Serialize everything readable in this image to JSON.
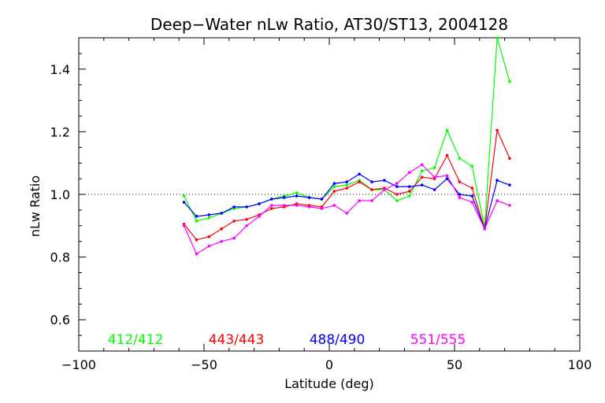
{
  "chart_data": {
    "type": "line",
    "title": "Deep−Water nLw Ratio, AT30/ST13, 2004128",
    "xlabel": "Latitude (deg)",
    "ylabel": "nLw Ratio",
    "xlim": [
      -100,
      100
    ],
    "ylim": [
      0.5,
      1.5
    ],
    "xticks": [
      -100,
      -50,
      0,
      50,
      100
    ],
    "xtick_labels": [
      "−100",
      "−50",
      "0",
      "50",
      "100"
    ],
    "yticks": [
      0.6,
      0.8,
      1.0,
      1.2,
      1.4
    ],
    "ytick_labels": [
      "0.6",
      "0.8",
      "1.0",
      "1.2",
      "1.4"
    ],
    "grid": false,
    "reference_line": {
      "y": 1.0,
      "style": "dotted"
    },
    "legend_placement": "bottom, inside plot",
    "x": [
      -58,
      -53,
      -48,
      -43,
      -38,
      -33,
      -28,
      -23,
      -18,
      -13,
      -8,
      -3,
      2,
      7,
      12,
      17,
      22,
      27,
      32,
      37,
      42,
      47,
      52,
      57,
      62,
      67,
      72
    ],
    "series": [
      {
        "name": "412/412",
        "color": "#00ff00",
        "values": [
          0.995,
          0.915,
          0.925,
          0.94,
          0.955,
          0.96,
          0.97,
          0.985,
          0.995,
          1.005,
          0.99,
          0.985,
          1.025,
          1.03,
          1.045,
          1.015,
          1.015,
          0.98,
          0.995,
          1.075,
          1.085,
          1.205,
          1.115,
          1.09,
          0.895,
          1.5,
          1.36
        ]
      },
      {
        "name": "443/443",
        "color": "#ff0000",
        "values": [
          0.905,
          0.855,
          0.865,
          0.89,
          0.915,
          0.92,
          0.935,
          0.955,
          0.96,
          0.97,
          0.965,
          0.96,
          1.01,
          1.02,
          1.04,
          1.015,
          1.02,
          1.0,
          1.01,
          1.055,
          1.05,
          1.125,
          1.04,
          1.02,
          0.89,
          1.205,
          1.115
        ]
      },
      {
        "name": "488/490",
        "color": "#0000ff",
        "values": [
          0.975,
          0.93,
          0.935,
          0.94,
          0.96,
          0.96,
          0.97,
          0.985,
          0.99,
          0.995,
          0.99,
          0.985,
          1.035,
          1.04,
          1.065,
          1.04,
          1.045,
          1.025,
          1.025,
          1.03,
          1.015,
          1.05,
          1.0,
          0.995,
          0.89,
          1.045,
          1.03
        ]
      },
      {
        "name": "551/555",
        "color": "#ff00ff",
        "values": [
          0.9,
          0.81,
          0.835,
          0.85,
          0.86,
          0.9,
          0.93,
          0.965,
          0.965,
          0.965,
          0.96,
          0.955,
          0.965,
          0.94,
          0.98,
          0.98,
          1.015,
          1.035,
          1.07,
          1.095,
          1.055,
          1.06,
          0.99,
          0.975,
          0.89,
          0.98,
          0.965
        ]
      }
    ]
  }
}
